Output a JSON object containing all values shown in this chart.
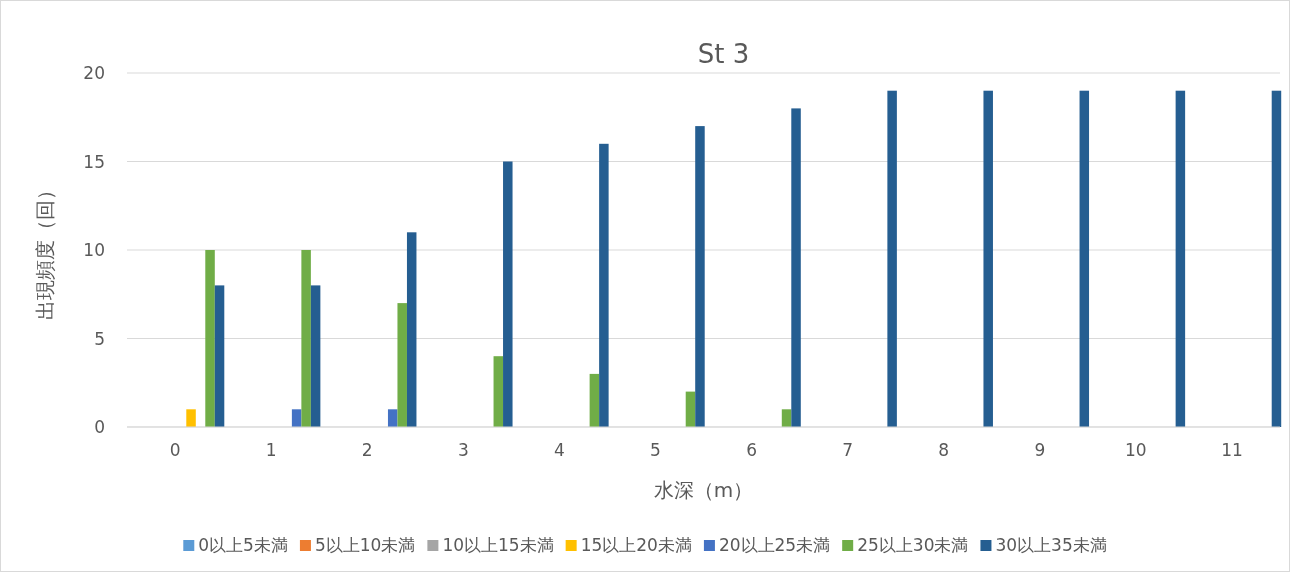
{
  "chart_data": {
    "type": "bar",
    "title": "St 3",
    "xlabel": "水深（m）",
    "ylabel": "出現頻度（回）",
    "categories": [
      "0",
      "1",
      "2",
      "3",
      "4",
      "5",
      "6",
      "7",
      "8",
      "9",
      "10",
      "11"
    ],
    "series": [
      {
        "name": "0以上5未満",
        "color": "#5b9bd5",
        "values": [
          0,
          0,
          0,
          0,
          0,
          0,
          0,
          0,
          0,
          0,
          0,
          0
        ]
      },
      {
        "name": "5以上10未満",
        "color": "#ed7d31",
        "values": [
          0,
          0,
          0,
          0,
          0,
          0,
          0,
          0,
          0,
          0,
          0,
          0
        ]
      },
      {
        "name": "10以上15未満",
        "color": "#a5a5a5",
        "values": [
          0,
          0,
          0,
          0,
          0,
          0,
          0,
          0,
          0,
          0,
          0,
          0
        ]
      },
      {
        "name": "15以上20未満",
        "color": "#ffc000",
        "values": [
          1,
          0,
          0,
          0,
          0,
          0,
          0,
          0,
          0,
          0,
          0,
          0
        ]
      },
      {
        "name": "20以上25未満",
        "color": "#4472c4",
        "values": [
          0,
          1,
          1,
          0,
          0,
          0,
          0,
          0,
          0,
          0,
          0,
          0
        ]
      },
      {
        "name": "25以上30未満",
        "color": "#70ad47",
        "values": [
          10,
          10,
          7,
          4,
          3,
          2,
          1,
          0,
          0,
          0,
          0,
          0
        ]
      },
      {
        "name": "30以上35未満",
        "color": "#255e91",
        "values": [
          8,
          8,
          11,
          15,
          16,
          17,
          18,
          19,
          19,
          19,
          19,
          19
        ]
      }
    ],
    "ylim": [
      0,
      20
    ],
    "yticks": [
      0,
      5,
      10,
      15,
      20
    ],
    "grid": "y",
    "legend": "bottom"
  }
}
